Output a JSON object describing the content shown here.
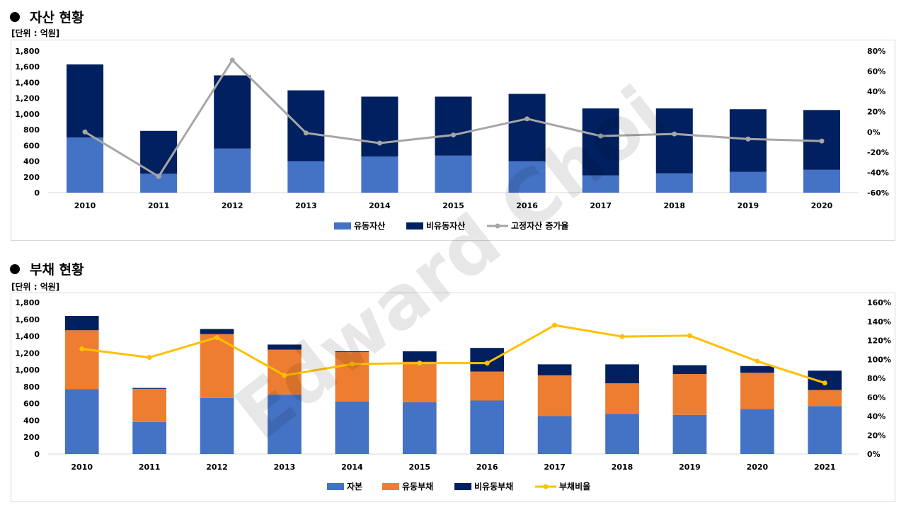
{
  "sections": [
    {
      "title": "자산 현황",
      "unit": "[단위 : 억원]"
    },
    {
      "title": "부채 현황",
      "unit": "[단위 : 억원]"
    }
  ],
  "watermark": "Edward Choi",
  "chart_data": [
    {
      "type": "bar",
      "stacked": true,
      "categories": [
        "2010",
        "2011",
        "2012",
        "2013",
        "2014",
        "2015",
        "2016",
        "2017",
        "2018",
        "2019",
        "2020"
      ],
      "series": [
        {
          "name": "유동자산",
          "values": [
            700,
            240,
            560,
            400,
            460,
            470,
            400,
            220,
            245,
            265,
            290
          ],
          "color": "#4472c4"
        },
        {
          "name": "비유동자산",
          "values": [
            930,
            545,
            930,
            900,
            760,
            750,
            855,
            850,
            825,
            795,
            760
          ],
          "color": "#002060"
        }
      ],
      "line_series": [
        {
          "name": "고정자산 증가율",
          "values": [
            0,
            -44,
            71,
            -1,
            -11,
            -3,
            13,
            -4,
            -2,
            -7,
            -9
          ],
          "color": "#a6a6a6",
          "axis": "right",
          "unit": "%"
        }
      ],
      "ylim": [
        0,
        1800
      ],
      "y_ticks": [
        "0",
        "200",
        "400",
        "600",
        "800",
        "1,000",
        "1,200",
        "1,400",
        "1,600",
        "1,800"
      ],
      "y2lim": [
        -60,
        80
      ],
      "y2_ticks": [
        "-60%",
        "-40%",
        "-20%",
        "0%",
        "20%",
        "40%",
        "60%",
        "80%"
      ],
      "legend_position": "bottom",
      "grid": false
    },
    {
      "type": "bar",
      "stacked": true,
      "categories": [
        "2010",
        "2011",
        "2012",
        "2013",
        "2014",
        "2015",
        "2016",
        "2017",
        "2018",
        "2019",
        "2020",
        "2021"
      ],
      "series": [
        {
          "name": "자본",
          "values": [
            770,
            380,
            665,
            705,
            625,
            615,
            635,
            450,
            475,
            465,
            535,
            570
          ],
          "color": "#4472c4"
        },
        {
          "name": "유동부채",
          "values": [
            700,
            395,
            760,
            535,
            585,
            480,
            345,
            485,
            365,
            485,
            430,
            190
          ],
          "color": "#ed7d31"
        },
        {
          "name": "비유동부채",
          "values": [
            170,
            10,
            60,
            60,
            10,
            125,
            280,
            130,
            225,
            105,
            80,
            230
          ],
          "color": "#002060"
        }
      ],
      "line_series": [
        {
          "name": "부채비율",
          "values": [
            111,
            102,
            123,
            83,
            95,
            96,
            96,
            136,
            124,
            125,
            98,
            75
          ],
          "color": "#ffc000",
          "axis": "right",
          "unit": "%"
        }
      ],
      "ylim": [
        0,
        1800
      ],
      "y_ticks": [
        "0",
        "200",
        "400",
        "600",
        "800",
        "1,000",
        "1,200",
        "1,400",
        "1,600",
        "1,800"
      ],
      "y2lim": [
        0,
        160
      ],
      "y2_ticks": [
        "0%",
        "20%",
        "40%",
        "60%",
        "80%",
        "100%",
        "120%",
        "140%",
        "160%"
      ],
      "legend_position": "bottom",
      "grid": false
    }
  ]
}
